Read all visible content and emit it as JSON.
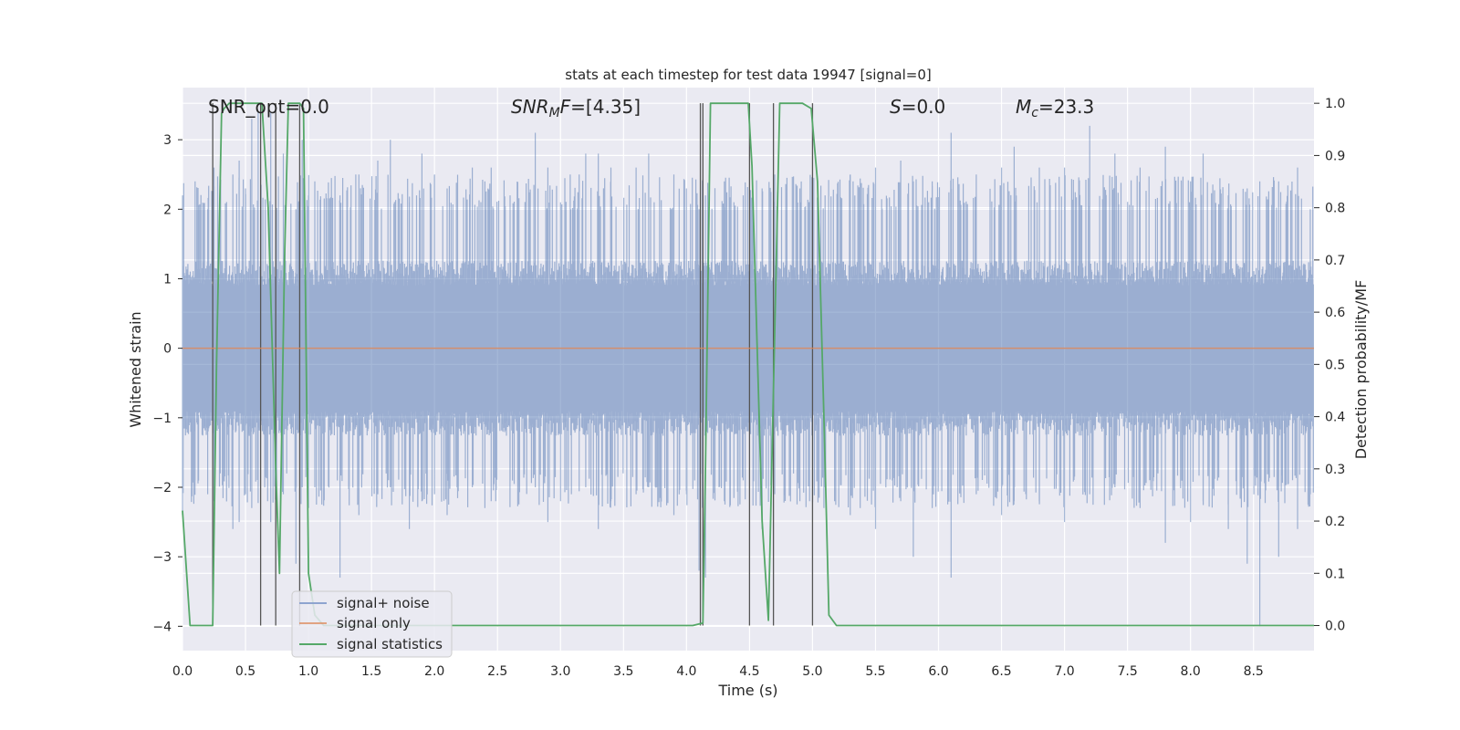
{
  "chart_data": {
    "type": "line",
    "title": "stats at each timestep for test data 19947 [signal=0]",
    "xlabel": "Time (s)",
    "ylabel_left": "Whitened strain",
    "ylabel_right": "Detection probability/MF",
    "xlim": [
      0.0,
      8.98
    ],
    "ylim_left": [
      -4.35,
      3.75
    ],
    "ylim_right": [
      -0.048,
      1.03
    ],
    "x_ticks": [
      0.0,
      0.5,
      1.0,
      1.5,
      2.0,
      2.5,
      3.0,
      3.5,
      4.0,
      4.5,
      5.0,
      5.5,
      6.0,
      6.5,
      7.0,
      7.5,
      8.0,
      8.5
    ],
    "x_tick_labels": [
      "0.0",
      "0.5",
      "1.0",
      "1.5",
      "2.0",
      "2.5",
      "3.0",
      "3.5",
      "4.0",
      "4.5",
      "5.0",
      "5.5",
      "6.0",
      "6.5",
      "7.0",
      "7.5",
      "8.0",
      "8.5"
    ],
    "y_left_ticks": [
      3,
      2,
      1,
      0,
      -1,
      -2,
      -3,
      -4
    ],
    "y_left_tick_labels": [
      "3",
      "2",
      "1",
      "0",
      "−1",
      "−2",
      "−3",
      "−4"
    ],
    "y_right_ticks": [
      1.0,
      0.9,
      0.8,
      0.7,
      0.6,
      0.5,
      0.4,
      0.3,
      0.2,
      0.1,
      0.0
    ],
    "y_right_tick_labels": [
      "1.0",
      "0.9",
      "0.8",
      "0.7",
      "0.6",
      "0.5",
      "0.4",
      "0.3",
      "0.2",
      "0.1",
      "0.0"
    ],
    "annotations": {
      "snr_opt": "SNR_opt=0.0",
      "snr_mf_name": "SNR",
      "snr_mf_sub": "M",
      "snr_mf_tail": "F",
      "snr_mf_value": "=[4.35]",
      "s_name": "S",
      "s_value": "=0.0",
      "mc_name": "M",
      "mc_sub": "c",
      "mc_value": "=23.3"
    },
    "noise_envelope": {
      "typical_abs_max": 1.2,
      "spike_range": [
        2.0,
        3.4
      ]
    },
    "series": [
      {
        "name": "signal+ noise",
        "color": "#4c72b0",
        "axis": "left",
        "style": "dense noise trace",
        "peaks": [
          [
            0.0,
            2.2,
            -2.4
          ],
          [
            0.1,
            2.4,
            -1.9
          ],
          [
            0.2,
            2.0,
            -2.1
          ],
          [
            0.25,
            2.6,
            -2.2
          ],
          [
            0.3,
            2.3,
            -1.8
          ],
          [
            0.4,
            2.5,
            -2.6
          ],
          [
            0.45,
            2.7,
            -2.5
          ],
          [
            0.5,
            2.3,
            -2.1
          ],
          [
            0.55,
            3.3,
            -2.3
          ],
          [
            0.6,
            3.4,
            -2.2
          ],
          [
            0.7,
            3.4,
            -2.5
          ],
          [
            0.8,
            2.8,
            -2.1
          ],
          [
            0.9,
            2.0,
            -3.1
          ],
          [
            0.95,
            3.0,
            -2.0
          ],
          [
            1.0,
            2.2,
            -2.3
          ],
          [
            1.05,
            2.4,
            -2.0
          ],
          [
            1.25,
            2.2,
            -3.3
          ],
          [
            1.4,
            2.5,
            -2.4
          ],
          [
            1.55,
            2.7,
            -2.1
          ],
          [
            1.65,
            3.0,
            -2.0
          ],
          [
            1.8,
            2.1,
            -2.6
          ],
          [
            1.9,
            2.8,
            -2.2
          ],
          [
            2.0,
            2.5,
            -2.1
          ],
          [
            2.1,
            2.3,
            -2.4
          ],
          [
            2.3,
            2.6,
            -2.0
          ],
          [
            2.4,
            2.4,
            -2.3
          ],
          [
            2.45,
            2.6,
            -2.2
          ],
          [
            2.6,
            2.2,
            -1.9
          ],
          [
            2.8,
            3.1,
            -2.0
          ],
          [
            2.9,
            2.6,
            -2.5
          ],
          [
            3.0,
            2.1,
            -2.2
          ],
          [
            3.2,
            2.8,
            -2.0
          ],
          [
            3.3,
            2.8,
            -2.6
          ],
          [
            3.4,
            2.6,
            -2.2
          ],
          [
            3.6,
            2.6,
            -2.1
          ],
          [
            3.7,
            2.8,
            -2.0
          ],
          [
            3.9,
            2.5,
            -2.4
          ],
          [
            4.0,
            2.3,
            -2.1
          ],
          [
            4.1,
            2.0,
            -3.2
          ],
          [
            4.15,
            2.2,
            -3.3
          ],
          [
            4.3,
            2.4,
            -2.2
          ],
          [
            4.45,
            2.2,
            -1.9
          ],
          [
            4.6,
            2.3,
            -2.6
          ],
          [
            4.7,
            2.5,
            -2.1
          ],
          [
            4.9,
            2.3,
            -2.2
          ],
          [
            5.1,
            2.2,
            -2.0
          ],
          [
            5.3,
            2.5,
            -2.4
          ],
          [
            5.5,
            2.6,
            -2.6
          ],
          [
            5.7,
            2.7,
            -2.2
          ],
          [
            5.8,
            2.4,
            -3.0
          ],
          [
            5.95,
            2.4,
            -2.3
          ],
          [
            6.1,
            3.1,
            -3.3
          ],
          [
            6.3,
            2.5,
            -2.1
          ],
          [
            6.5,
            2.6,
            -2.4
          ],
          [
            6.6,
            2.9,
            -2.2
          ],
          [
            6.8,
            2.6,
            -2.2
          ],
          [
            7.0,
            2.6,
            -2.5
          ],
          [
            7.2,
            3.2,
            -2.1
          ],
          [
            7.4,
            2.8,
            -2.0
          ],
          [
            7.6,
            2.6,
            -2.3
          ],
          [
            7.8,
            2.9,
            -2.8
          ],
          [
            8.0,
            2.4,
            -2.5
          ],
          [
            8.1,
            2.8,
            -2.2
          ],
          [
            8.3,
            2.2,
            -2.6
          ],
          [
            8.45,
            2.3,
            -3.1
          ],
          [
            8.55,
            2.4,
            -4.0
          ],
          [
            8.7,
            2.4,
            -3.0
          ],
          [
            8.85,
            2.6,
            -2.6
          ],
          [
            8.95,
            2.0,
            -2.1
          ]
        ]
      },
      {
        "name": "signal only",
        "color": "#dd8452",
        "axis": "left",
        "x": [
          0.0,
          8.98
        ],
        "y": [
          0.0,
          0.0
        ]
      },
      {
        "name": "signal statistics",
        "color": "#55a868",
        "axis": "right",
        "x": [
          0.0,
          0.06,
          0.24,
          0.27,
          0.31,
          0.33,
          0.37,
          0.44,
          0.6,
          0.63,
          0.68,
          0.74,
          0.77,
          0.81,
          0.84,
          0.91,
          0.93,
          0.96,
          1.0,
          1.05,
          1.12,
          4.05,
          4.13,
          4.15,
          4.19,
          4.3,
          4.49,
          4.52,
          4.6,
          4.65,
          4.69,
          4.74,
          4.92,
          4.99,
          5.04,
          5.09,
          5.13,
          5.19,
          5.8,
          8.98
        ],
        "y": [
          0.22,
          0.0,
          0.0,
          0.5,
          0.98,
          0.99,
          1.0,
          1.0,
          1.0,
          1.0,
          0.8,
          0.3,
          0.1,
          0.7,
          1.0,
          1.0,
          1.0,
          0.99,
          0.1,
          0.02,
          0.0,
          0.0,
          0.005,
          0.3,
          1.0,
          1.0,
          1.0,
          0.88,
          0.2,
          0.01,
          0.45,
          1.0,
          1.0,
          0.99,
          0.85,
          0.4,
          0.02,
          0.0,
          0.0,
          0.0
        ]
      }
    ],
    "vertical_lines_x": [
      0.24,
      0.62,
      0.74,
      0.93,
      4.11,
      4.13,
      4.5,
      4.69,
      5.0
    ],
    "legend_position": "lower-left",
    "legend": [
      "signal+ noise",
      "signal only",
      "signal statistics"
    ],
    "grid": true
  }
}
